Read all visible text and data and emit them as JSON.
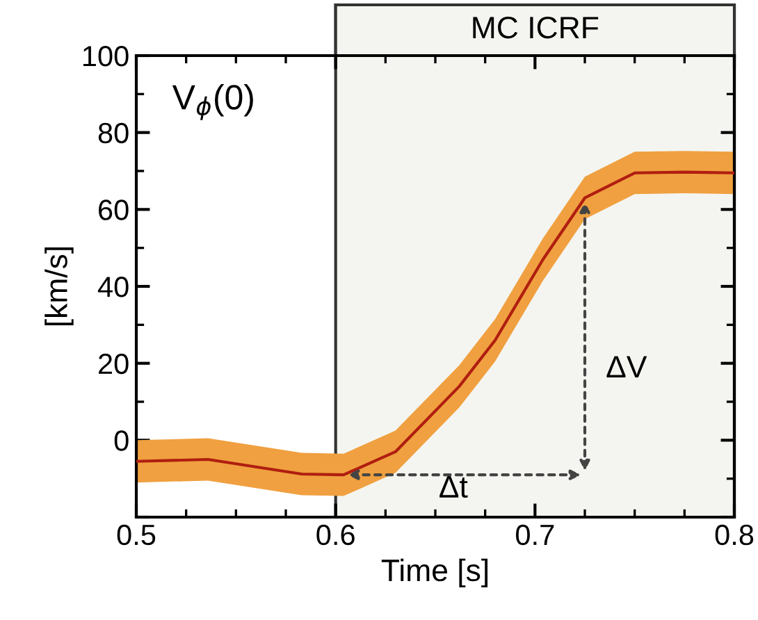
{
  "chart_data": {
    "type": "line",
    "xlabel": "Time [s]",
    "ylabel": "[km/s]",
    "x": [
      0.5,
      0.536,
      0.583,
      0.604,
      0.63,
      0.662,
      0.68,
      0.704,
      0.725,
      0.75,
      0.775,
      0.8
    ],
    "series": [
      {
        "color": "#b01e10",
        "values": [
          -5.5,
          -5,
          -8.8,
          -9,
          -3,
          14,
          26,
          47,
          63,
          69.5,
          69.7,
          69.5
        ],
        "lower": [
          -11,
          -10.5,
          -14.3,
          -14.5,
          -8.5,
          8.5,
          20.5,
          41.5,
          57.5,
          64,
          64.2,
          64
        ],
        "upper": [
          0,
          0.5,
          -3.3,
          -3.5,
          2.5,
          19.5,
          31.5,
          52.5,
          68.5,
          75,
          75.2,
          75
        ]
      }
    ],
    "xlim": [
      0.5,
      0.8
    ],
    "ylim": [
      -20,
      100
    ],
    "xticks": [
      0.5,
      0.6,
      0.7,
      0.8
    ],
    "yticks": [
      {
        "value": -20,
        "label": null
      },
      0,
      20,
      40,
      60,
      80,
      100
    ],
    "bands": [
      {
        "axis": "x",
        "from": 0.6,
        "to": 0.8,
        "label": "MC ICRF",
        "color": "#f4f5f0"
      }
    ],
    "annotations": [
      "V$_{ϕ}$(0)",
      "Δt",
      "ΔV"
    ],
    "grid": false
  }
}
